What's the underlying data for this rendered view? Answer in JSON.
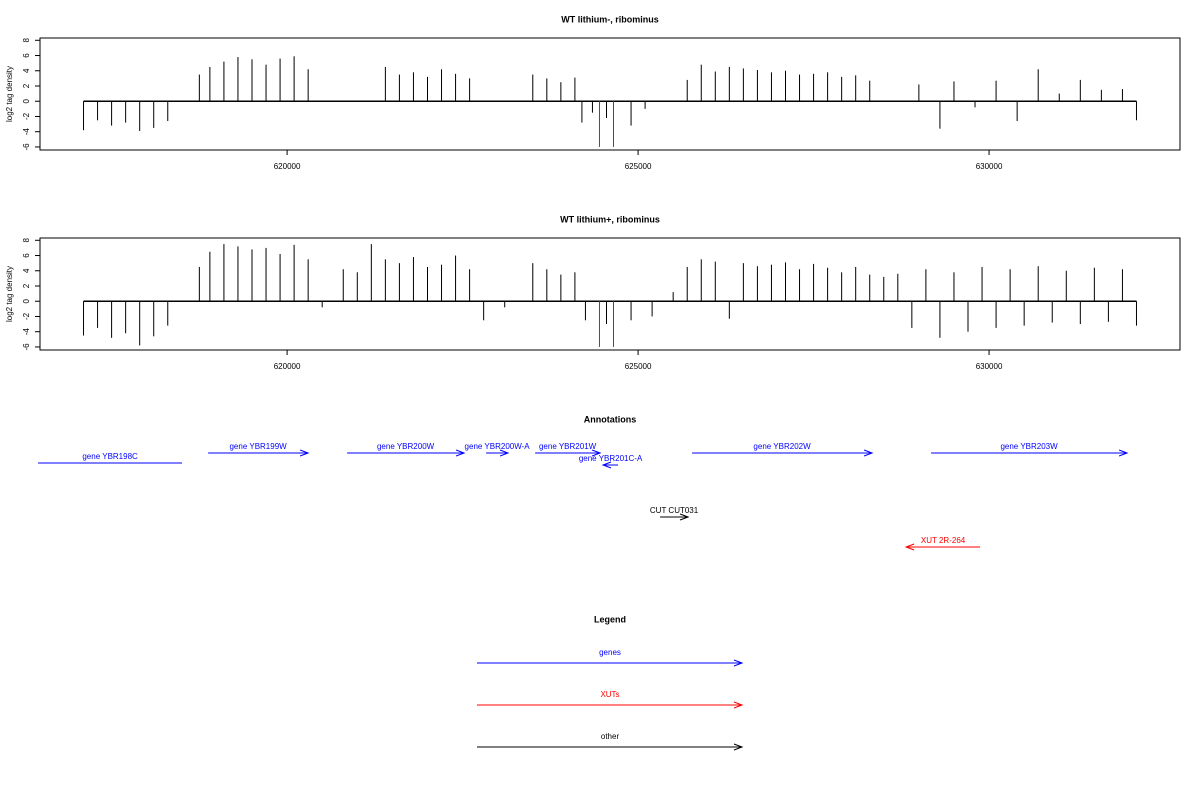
{
  "chart_data": [
    {
      "type": "bar",
      "title": "WT lithium-, ribominus",
      "y_label": "log2 tag density",
      "xlim": [
        616480,
        632720
      ],
      "xticks": [
        620000,
        625000,
        630000
      ],
      "ylim": [
        -6.4,
        8.3
      ],
      "yticks": [
        -6,
        -4,
        -2,
        0,
        2,
        4,
        6,
        8
      ],
      "series": [
        {
          "color": "#000000",
          "x": [
            617100,
            617300,
            617500,
            617700,
            617900,
            618100,
            618300,
            618750,
            618900,
            619100,
            619300,
            619500,
            619700,
            619900,
            620100,
            620300,
            621400,
            621600,
            621800,
            622000,
            622200,
            622400,
            622600,
            623500,
            623700,
            623900,
            624100,
            624200,
            624350,
            624550,
            624900,
            625100,
            625700,
            625900,
            626100,
            626300,
            626500,
            626700,
            626900,
            627100,
            627300,
            627500,
            627700,
            627900,
            628100,
            628300,
            629000,
            629300,
            629500,
            629800,
            630100,
            630400,
            630700,
            631000,
            631300,
            631600,
            631900,
            632100
          ],
          "values": [
            -3.8,
            -2.5,
            -3.2,
            -2.8,
            -3.9,
            -3.5,
            -2.6,
            3.5,
            4.5,
            5.2,
            5.8,
            5.5,
            4.8,
            5.6,
            5.9,
            4.2,
            4.5,
            3.5,
            3.8,
            3.2,
            4.2,
            3.6,
            3.0,
            3.5,
            3.0,
            2.5,
            3.1,
            -2.8,
            -1.5,
            -2.2,
            -3.2,
            -1.0,
            2.8,
            4.8,
            3.9,
            4.5,
            4.3,
            4.1,
            3.8,
            4.0,
            3.5,
            3.6,
            3.8,
            3.2,
            3.4,
            2.7,
            2.2,
            -3.6,
            2.6,
            -0.8,
            2.7,
            -2.6,
            4.2,
            1.0,
            2.8,
            1.5,
            1.6,
            -2.5
          ]
        },
        {
          "color": "#ff0000",
          "x": [
            624450,
            624650
          ],
          "values": [
            -6,
            -6
          ]
        }
      ]
    },
    {
      "type": "bar",
      "title": "WT lithium+, ribominus",
      "y_label": "log2 tag density",
      "xlim": [
        616480,
        632720
      ],
      "xticks": [
        620000,
        625000,
        630000
      ],
      "ylim": [
        -6.4,
        8.3
      ],
      "yticks": [
        -6,
        -4,
        -2,
        0,
        2,
        4,
        6,
        8
      ],
      "series": [
        {
          "color": "#000000",
          "x": [
            617100,
            617300,
            617500,
            617700,
            617900,
            618100,
            618300,
            618750,
            618900,
            619100,
            619300,
            619500,
            619700,
            619900,
            620100,
            620300,
            620500,
            620800,
            621000,
            621200,
            621400,
            621600,
            621800,
            622000,
            622200,
            622400,
            622600,
            622800,
            623100,
            623500,
            623700,
            623900,
            624100,
            624250,
            624550,
            624900,
            625200,
            625500,
            625700,
            625900,
            626100,
            626300,
            626500,
            626700,
            626900,
            627100,
            627300,
            627500,
            627700,
            627900,
            628100,
            628300,
            628500,
            628700,
            628900,
            629100,
            629300,
            629500,
            629700,
            629900,
            630100,
            630300,
            630500,
            630700,
            630900,
            631100,
            631300,
            631500,
            631700,
            631900,
            632100
          ],
          "values": [
            -4.5,
            -3.5,
            -4.8,
            -4.2,
            -5.8,
            -4.6,
            -3.2,
            4.5,
            6.5,
            7.5,
            7.2,
            6.8,
            7.0,
            6.2,
            7.4,
            5.5,
            -0.8,
            4.2,
            3.8,
            7.5,
            5.5,
            5.0,
            5.8,
            4.5,
            4.8,
            6.0,
            4.2,
            -2.5,
            -0.8,
            5.0,
            4.2,
            3.5,
            3.8,
            -2.5,
            -3.0,
            -2.5,
            -2.0,
            1.2,
            4.5,
            5.5,
            5.2,
            -2.3,
            5.0,
            4.6,
            4.8,
            5.1,
            4.2,
            4.9,
            4.4,
            3.8,
            4.5,
            3.5,
            3.2,
            3.6,
            -3.5,
            4.2,
            -4.8,
            3.8,
            -4.0,
            4.5,
            -3.5,
            4.2,
            -3.2,
            4.6,
            -2.8,
            4.0,
            -3.0,
            4.4,
            -2.7,
            4.2,
            -3.2
          ]
        },
        {
          "color": "#ff0000",
          "x": [
            624450,
            624650
          ],
          "values": [
            -6,
            -6
          ]
        }
      ]
    },
    {
      "type": "annotation",
      "title": "Annotations",
      "xlim": [
        616480,
        632720
      ],
      "features": [
        {
          "label": "gene YBR198C",
          "start": 616453,
          "end": 618504,
          "strand": "none",
          "color": "#0000ff",
          "row": 2
        },
        {
          "label": "gene YBR199W",
          "start": 618875,
          "end": 620299,
          "strand": "+",
          "color": "#0000ff",
          "row": 0
        },
        {
          "label": "gene YBR200W",
          "start": 620855,
          "end": 622521,
          "strand": "+",
          "color": "#0000ff",
          "row": 0
        },
        {
          "label": "gene YBR200W-A",
          "start": 622835,
          "end": 623148,
          "strand": "+",
          "color": "#0000ff",
          "row": 0
        },
        {
          "label": "gene YBR201W",
          "start": 623533,
          "end": 624459,
          "strand": "+",
          "color": "#0000ff",
          "row": 0
        },
        {
          "label": "gene YBR201C-A",
          "start": 624501,
          "end": 624715,
          "strand": "-",
          "color": "#0000ff",
          "row": 1
        },
        {
          "label": "gene YBR202W",
          "start": 625769,
          "end": 628333,
          "strand": "+",
          "color": "#0000ff",
          "row": 0
        },
        {
          "label": "gene YBR203W",
          "start": 629174,
          "end": 631966,
          "strand": "+",
          "color": "#0000ff",
          "row": 0
        },
        {
          "label": "CUT CUT031",
          "start": 625313,
          "end": 625712,
          "strand": "+",
          "color": "#000000",
          "row": 3
        },
        {
          "label": "XUT 2R-264",
          "start": 628818,
          "end": 629872,
          "strand": "-",
          "color": "#ff0000",
          "row": 4
        }
      ]
    },
    {
      "type": "legend",
      "title": "Legend",
      "entries": [
        {
          "label": "genes",
          "color": "#0000ff"
        },
        {
          "label": "XUTs",
          "color": "#ff0000"
        },
        {
          "label": "other",
          "color": "#000000"
        }
      ]
    }
  ]
}
